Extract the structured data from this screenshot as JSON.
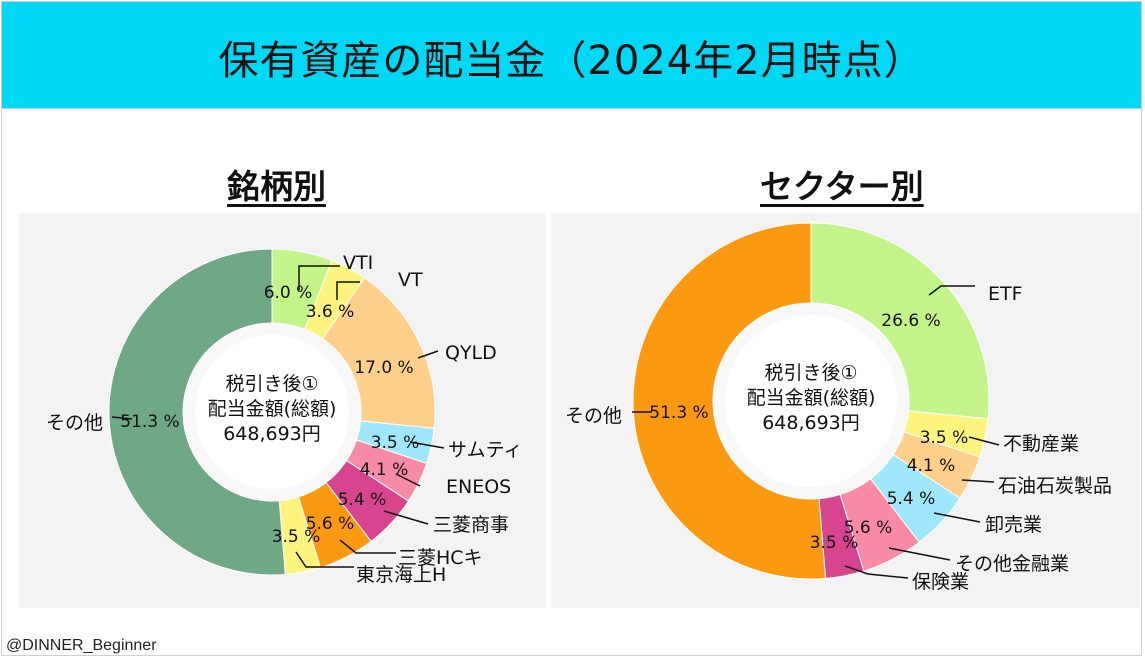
{
  "header": {
    "title": "保有資産の配当金（2024年2月時点）",
    "banner_color": "#00d8f6"
  },
  "charts": {
    "left_title": "銘柄別",
    "right_title": "セクター別",
    "center_line1": "税引き後①",
    "center_line2": "配当金額(総額)",
    "center_line3": "648,693円"
  },
  "chart_data": [
    {
      "type": "pie",
      "title": "銘柄別",
      "unit": "%",
      "slices": [
        {
          "label": "VTI",
          "value": 6.0,
          "value_label": "6.0 %",
          "color": "#c3f48a"
        },
        {
          "label": "VT",
          "value": 3.6,
          "value_label": "3.6 %",
          "color": "#fdf47e"
        },
        {
          "label": "QYLD",
          "value": 17.0,
          "value_label": "17.0 %",
          "color": "#ffd08c"
        },
        {
          "label": "サムティ",
          "value": 3.5,
          "value_label": "3.5 %",
          "color": "#9fe7fb"
        },
        {
          "label": "ENEOS",
          "value": 4.1,
          "value_label": "4.1 %",
          "color": "#f78aa4"
        },
        {
          "label": "三菱商事",
          "value": 5.4,
          "value_label": "5.4 %",
          "color": "#d8458f"
        },
        {
          "label": "三菱HCキ",
          "value": 5.6,
          "value_label": "5.6 %",
          "color": "#fb9911"
        },
        {
          "label": "東京海上H",
          "value": 3.5,
          "value_label": "3.5 %",
          "color": "#fdf47e"
        },
        {
          "label": "その他",
          "value": 51.3,
          "value_label": "51.3 %",
          "color": "#6fa884"
        }
      ]
    },
    {
      "type": "pie",
      "title": "セクター別",
      "unit": "%",
      "slices": [
        {
          "label": "ETF",
          "value": 26.6,
          "value_label": "26.6 %",
          "color": "#c3f48a"
        },
        {
          "label": "不動産業",
          "value": 3.5,
          "value_label": "3.5 %",
          "color": "#fdf47e"
        },
        {
          "label": "石油石炭製品",
          "value": 4.1,
          "value_label": "4.1 %",
          "color": "#ffd08c"
        },
        {
          "label": "卸売業",
          "value": 5.4,
          "value_label": "5.4 %",
          "color": "#9fe7fb"
        },
        {
          "label": "その他金融業",
          "value": 5.6,
          "value_label": "5.6 %",
          "color": "#f78aa4"
        },
        {
          "label": "保険業",
          "value": 3.5,
          "value_label": "3.5 %",
          "color": "#d8458f"
        },
        {
          "label": "その他",
          "value": 51.3,
          "value_label": "51.3 %",
          "color": "#fb9911"
        }
      ]
    }
  ],
  "footer": {
    "credit": "@DINNER_Beginner"
  }
}
